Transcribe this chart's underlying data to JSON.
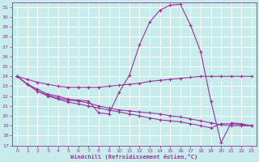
{
  "bg_color": "#c8ecec",
  "grid_color": "#ffffff",
  "line_color": "#993399",
  "xlabel": "Windchill (Refroidissement éolien,°C)",
  "xlim": [
    -0.5,
    23.5
  ],
  "ylim": [
    17,
    31.5
  ],
  "yticks": [
    17,
    18,
    19,
    20,
    21,
    22,
    23,
    24,
    25,
    26,
    27,
    28,
    29,
    30,
    31
  ],
  "xticks": [
    0,
    1,
    2,
    3,
    4,
    5,
    6,
    7,
    8,
    9,
    10,
    11,
    12,
    13,
    14,
    15,
    16,
    17,
    18,
    19,
    20,
    21,
    22,
    23
  ],
  "line1_x": [
    0,
    1,
    2,
    3,
    4,
    5,
    6,
    7,
    8,
    9,
    10,
    11,
    12,
    13,
    14,
    15,
    16,
    17,
    18,
    19,
    20,
    21,
    22,
    23
  ],
  "line1_y": [
    24.0,
    23.2,
    22.7,
    22.2,
    22.0,
    21.7,
    21.6,
    21.5,
    20.3,
    20.2,
    22.4,
    24.1,
    27.2,
    29.5,
    30.7,
    31.2,
    31.3,
    29.2,
    26.5,
    21.5,
    17.3,
    19.3,
    19.2,
    19.0
  ],
  "line2_x": [
    0,
    1,
    2,
    3,
    4,
    5,
    6,
    7,
    8,
    9,
    10,
    11,
    12,
    13,
    14,
    15,
    16,
    17,
    18,
    19,
    20,
    21,
    22,
    23
  ],
  "line2_y": [
    24.0,
    23.7,
    23.4,
    23.2,
    23.0,
    22.9,
    22.9,
    22.9,
    22.9,
    23.0,
    23.1,
    23.2,
    23.3,
    23.5,
    23.6,
    23.7,
    23.8,
    23.9,
    24.0,
    24.0,
    24.0,
    24.0,
    24.0,
    24.0
  ],
  "line3_x": [
    0,
    1,
    2,
    3,
    4,
    5,
    6,
    7,
    8,
    9,
    10,
    11,
    12,
    13,
    14,
    15,
    16,
    17,
    18,
    19,
    20,
    21,
    22,
    23
  ],
  "line3_y": [
    24.0,
    23.2,
    22.5,
    22.0,
    21.7,
    21.4,
    21.2,
    21.0,
    20.8,
    20.6,
    20.4,
    20.2,
    20.0,
    19.8,
    19.6,
    19.5,
    19.4,
    19.2,
    19.0,
    18.8,
    19.2,
    19.2,
    19.1,
    19.0
  ],
  "line4_x": [
    0,
    1,
    2,
    3,
    4,
    5,
    6,
    7,
    8,
    9,
    10,
    11,
    12,
    13,
    14,
    15,
    16,
    17,
    18,
    19,
    20,
    21,
    22,
    23
  ],
  "line4_y": [
    24.0,
    23.2,
    22.5,
    22.1,
    21.8,
    21.6,
    21.5,
    21.3,
    21.0,
    20.8,
    20.6,
    20.5,
    20.4,
    20.3,
    20.2,
    20.0,
    19.9,
    19.7,
    19.5,
    19.3,
    19.1,
    19.0,
    19.0,
    19.0
  ]
}
